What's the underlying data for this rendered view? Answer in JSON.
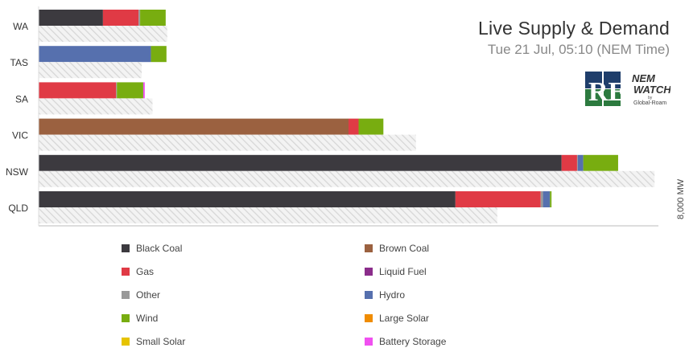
{
  "header": {
    "title": "Live Supply & Demand",
    "subtitle": "Tue 21 Jul, 05:10 (NEM Time)"
  },
  "logos": {
    "re_text": "RE",
    "nemwatch_line1": "NEM",
    "nemwatch_line2": "WATCH",
    "nemwatch_by": "by",
    "nemwatch_company": "Global-Roam"
  },
  "colors": {
    "Black Coal": "#3c3a3f",
    "Brown Coal": "#9b6140",
    "Gas": "#e03a45",
    "Liquid Fuel": "#8b2d8b",
    "Other": "#999999",
    "Hydro": "#5670ae",
    "Wind": "#78ad10",
    "Large Solar": "#f08c00",
    "Small Solar": "#e6c300",
    "Battery Storage": "#f050f0",
    "demand_hatch": "#d6d6d6",
    "axis": "#bbbbbb"
  },
  "chart_data": {
    "type": "bar",
    "orientation": "horizontal-stacked",
    "categories": [
      "WA",
      "TAS",
      "SA",
      "VIC",
      "NSW",
      "QLD"
    ],
    "axis_label": "8,000 MW",
    "xlim": [
      0,
      8000
    ],
    "series": [
      {
        "name": "Black Coal",
        "values": [
          830,
          0,
          0,
          0,
          6750,
          5380
        ]
      },
      {
        "name": "Brown Coal",
        "values": [
          0,
          0,
          0,
          4000,
          0,
          0
        ]
      },
      {
        "name": "Gas",
        "values": [
          460,
          0,
          1000,
          130,
          200,
          1100
        ]
      },
      {
        "name": "Liquid Fuel",
        "values": [
          0,
          0,
          0,
          0,
          0,
          0
        ]
      },
      {
        "name": "Other",
        "values": [
          20,
          0,
          10,
          0,
          10,
          30
        ]
      },
      {
        "name": "Hydro",
        "values": [
          0,
          1450,
          0,
          0,
          70,
          90
        ]
      },
      {
        "name": "Wind",
        "values": [
          330,
          200,
          340,
          320,
          450,
          20
        ]
      },
      {
        "name": "Large Solar",
        "values": [
          0,
          0,
          0,
          0,
          0,
          0
        ]
      },
      {
        "name": "Small Solar",
        "values": [
          0,
          0,
          0,
          0,
          0,
          0
        ]
      },
      {
        "name": "Battery Storage",
        "values": [
          0,
          0,
          20,
          0,
          0,
          0
        ]
      }
    ],
    "demand": {
      "name": "Demand",
      "values": [
        1660,
        1330,
        1470,
        4870,
        7950,
        5920
      ]
    },
    "legend": [
      "Black Coal",
      "Gas",
      "Other",
      "Wind",
      "Small Solar",
      "Brown Coal",
      "Liquid Fuel",
      "Hydro",
      "Large Solar",
      "Battery Storage"
    ],
    "legend_position": "bottom"
  }
}
